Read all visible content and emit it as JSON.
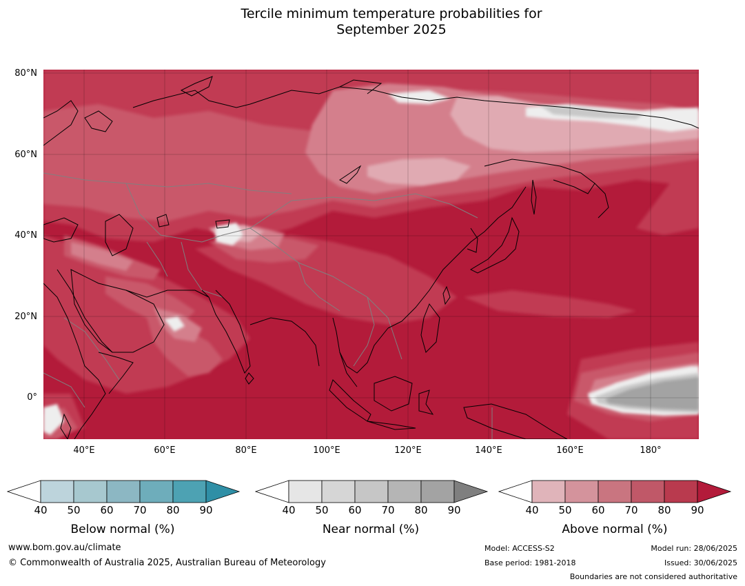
{
  "title": {
    "line1": "Tercile minimum temperature probabilities for",
    "line2": "September 2025"
  },
  "map": {
    "lat_labels": [
      "80°N",
      "60°N",
      "40°N",
      "20°N",
      "0°"
    ],
    "lon_labels": [
      "40°E",
      "60°E",
      "80°E",
      "100°E",
      "120°E",
      "140°E",
      "160°E",
      "180°"
    ],
    "lat_range": [
      -10,
      81
    ],
    "lon_range": [
      30,
      192
    ],
    "colors": {
      "above_max": "#b31b3a",
      "above_80": "#c13a52",
      "above_70": "#c9596a",
      "above_60": "#d47f8c",
      "above_50": "#e0aab2",
      "near_white": "#eeeeee",
      "near_gray": "#a3a3a3",
      "land_line": "#000000",
      "border_line": "#808080"
    }
  },
  "colorbars": [
    {
      "name": "Below normal (%)",
      "ticks": [
        "40",
        "50",
        "60",
        "70",
        "80",
        "90"
      ],
      "colors": [
        "#ffffff",
        "#bdd4dc",
        "#a7c8cf",
        "#8cb7c3",
        "#6eadbb",
        "#4da2b3",
        "#2f8fa6"
      ]
    },
    {
      "name": "Near normal (%)",
      "ticks": [
        "40",
        "50",
        "60",
        "70",
        "80",
        "90"
      ],
      "colors": [
        "#ffffff",
        "#e6e6e6",
        "#d6d6d6",
        "#c6c6c6",
        "#b5b5b5",
        "#a3a3a3",
        "#7f7f7f"
      ]
    },
    {
      "name": "Above normal (%)",
      "ticks": [
        "40",
        "50",
        "60",
        "70",
        "80",
        "90"
      ],
      "colors": [
        "#ffffff",
        "#e0b4ba",
        "#d4939c",
        "#c97580",
        "#c05868",
        "#b93a4e",
        "#b31b3a"
      ]
    }
  ],
  "footer": {
    "url": "www.bom.gov.au/climate",
    "copyright": "© Commonwealth of Australia 2025, Australian Bureau of Meteorology",
    "model": "Model: ACCESS-S2",
    "base_period": "Base period: 1981-2018",
    "model_run": "Model run: 28/06/2025",
    "issued": "Issued: 30/06/2025",
    "disclaimer": "Boundaries are not considered authoritative"
  }
}
